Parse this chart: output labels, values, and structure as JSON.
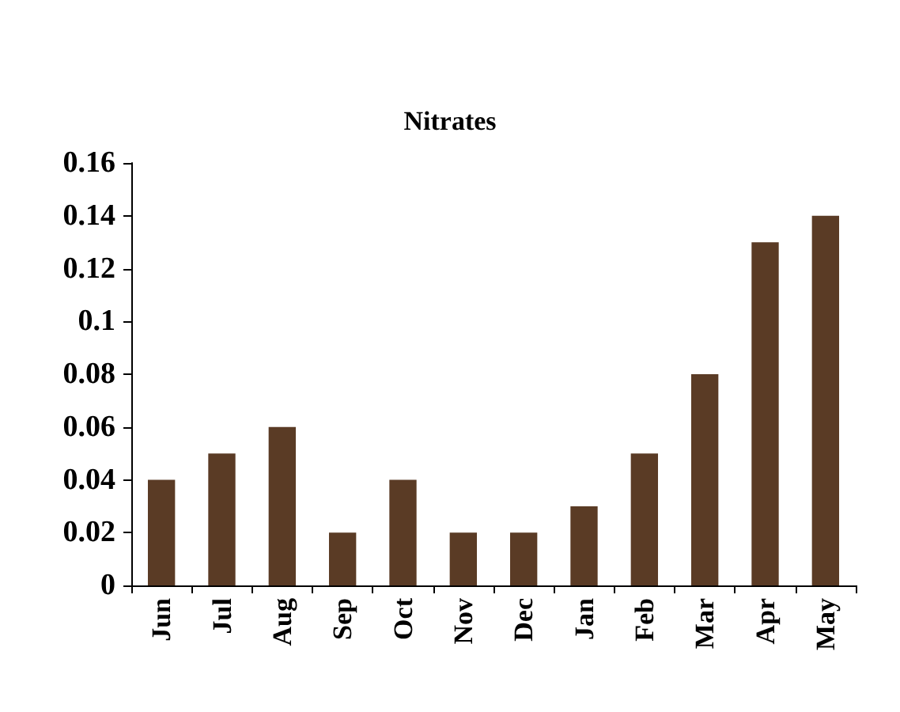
{
  "chart_data": {
    "type": "bar",
    "title": "Nitrates",
    "categories": [
      "Jun",
      "Jul",
      "Aug",
      "Sep",
      "Oct",
      "Nov",
      "Dec",
      "Jan",
      "Feb",
      "Mar",
      "Apr",
      "May"
    ],
    "values": [
      0.04,
      0.05,
      0.06,
      0.02,
      0.04,
      0.02,
      0.02,
      0.03,
      0.05,
      0.08,
      0.13,
      0.14
    ],
    "color": "#5a3b25",
    "ylim": [
      0,
      0.16
    ],
    "yticks": [
      0,
      0.02,
      0.04,
      0.06,
      0.08,
      0.1,
      0.12,
      0.14,
      0.16
    ],
    "grid": false
  }
}
